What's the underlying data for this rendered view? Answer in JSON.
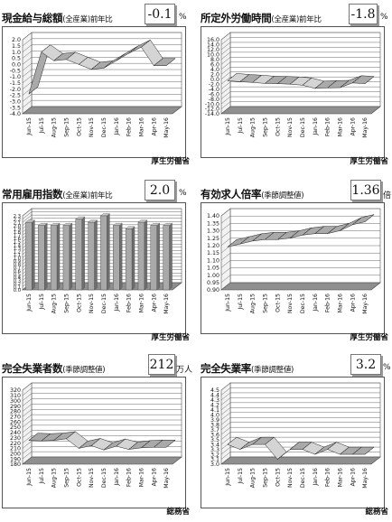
{
  "charts": [
    {
      "title": "現金給与総額",
      "subtitle": "(全産業)前年比",
      "value": "-0.1",
      "unit": "%",
      "source": "厚生労働省",
      "colors": {
        "fill": "#a9a9a9",
        "dark": "#222222"
      }
    },
    {
      "title": "所定外労働時間",
      "subtitle": "(全産業)前年比",
      "value": "-1.8",
      "unit": "%",
      "source": "厚生労働省",
      "colors": {
        "fill": "#a9a9a9",
        "dark": "#222222"
      }
    },
    {
      "title": "常用雇用指数",
      "subtitle": "(全産業)前年比",
      "value": "2.0",
      "unit": "%",
      "source": "厚生労働省",
      "colors": {
        "fill": "#a9a9a9",
        "dark": "#222222"
      }
    },
    {
      "title": "有効求人倍率",
      "subtitle": "(季節調整値)",
      "value": "1.36",
      "unit": "倍",
      "source": "厚生労働省",
      "colors": {
        "fill": "#a9a9a9",
        "dark": "#222222"
      }
    },
    {
      "title": "完全失業者数",
      "subtitle": "(季節調整値)",
      "value": "212",
      "unit": "万人",
      "source": "総務省",
      "colors": {
        "fill": "#a9a9a9",
        "dark": "#222222"
      }
    },
    {
      "title": "完全失業率",
      "subtitle": "(季節調整値)",
      "value": "3.2",
      "unit": "%",
      "source": "総務省",
      "colors": {
        "fill": "#a9a9a9",
        "dark": "#222222"
      }
    }
  ],
  "chart_data": [
    {
      "type": "line",
      "title": "現金給与総額",
      "categories": [
        "Jun-15",
        "Jul-15",
        "Aug-15",
        "Sep-15",
        "Oct-15",
        "Nov-15",
        "Dec-15",
        "Jan-16",
        "Feb-16",
        "Mar-16",
        "Apr-16",
        "May-16"
      ],
      "values": [
        -2.4,
        1.0,
        0.3,
        0.4,
        0.0,
        -0.4,
        -0.3,
        0.3,
        0.9,
        1.4,
        -0.1,
        -0.1
      ],
      "ylim": [
        -4.0,
        2.0
      ],
      "yticks": [
        "2.0",
        "1.5",
        "1.0",
        "0.5",
        "0.0",
        "-0.5",
        "-1.0",
        "-1.5",
        "-2.0",
        "-2.5",
        "-3.0",
        "-3.5",
        "-4.0"
      ],
      "grid": true
    },
    {
      "type": "line",
      "title": "所定外労働時間",
      "categories": [
        "Jun-15",
        "Jul-15",
        "Aug-15",
        "Sep-15",
        "Oct-15",
        "Nov-15",
        "Dec-15",
        "Jan-16",
        "Feb-16",
        "Mar-16",
        "Apr-16",
        "May-16"
      ],
      "values": [
        -0.6,
        -1.0,
        -1.3,
        -1.7,
        -1.8,
        -2.0,
        -2.4,
        -3.7,
        -3.5,
        -3.4,
        -1.5,
        -1.8
      ],
      "ylim": [
        -14.0,
        16.0
      ],
      "yticks": [
        "16.0",
        "14.0",
        "12.0",
        "10.0",
        "8.0",
        "6.0",
        "4.0",
        "2.0",
        "0.0",
        "-2.0",
        "-4.0",
        "-6.0",
        "-8.0",
        "-10.0",
        "-12.0",
        "-14.0"
      ],
      "grid": true
    },
    {
      "type": "bar",
      "title": "常用雇用指数",
      "categories": [
        "Jun-15",
        "Jul-15",
        "Aug-15",
        "Sep-15",
        "Oct-15",
        "Nov-15",
        "Dec-15",
        "Jan-16",
        "Feb-16",
        "Mar-16",
        "Apr-16",
        "May-16"
      ],
      "values": [
        2.1,
        2.0,
        2.0,
        2.0,
        2.2,
        2.1,
        2.3,
        2.0,
        1.9,
        2.1,
        2.0,
        2.0
      ],
      "ylim": [
        0.0,
        2.3
      ],
      "yticks": [
        "2.3",
        "2.2",
        "2.1",
        "2.0",
        "1.9",
        "1.8",
        "1.7",
        "1.6",
        "1.5",
        "1.4",
        "1.3",
        "1.2",
        "1.1",
        "1.0",
        "0.9",
        "0.8",
        "0.7",
        "0.6",
        "0.5",
        "0.4",
        "0.3",
        "0.2",
        "0.1",
        "0.0"
      ],
      "grid": true
    },
    {
      "type": "line",
      "title": "有効求人倍率",
      "categories": [
        "Jun-15",
        "Jul-15",
        "Aug-15",
        "Sep-15",
        "Oct-15",
        "Nov-15",
        "Dec-15",
        "Jan-16",
        "Feb-16",
        "Mar-16",
        "Apr-16",
        "May-16"
      ],
      "values": [
        1.19,
        1.21,
        1.23,
        1.24,
        1.24,
        1.25,
        1.27,
        1.28,
        1.28,
        1.3,
        1.34,
        1.36
      ],
      "ylim": [
        0.9,
        1.4
      ],
      "yticks": [
        "1.40",
        "1.35",
        "1.30",
        "1.25",
        "1.20",
        "1.15",
        "1.10",
        "1.05",
        "1.00",
        "0.95",
        "0.90"
      ],
      "grid": true
    },
    {
      "type": "line",
      "title": "完全失業者数",
      "categories": [
        "Jun-15",
        "Jul-15",
        "Aug-15",
        "Sep-15",
        "Oct-15",
        "Nov-15",
        "Dec-15",
        "Jan-16",
        "Feb-16",
        "Mar-16",
        "Apr-16",
        "May-16"
      ],
      "values": [
        225,
        224,
        225,
        228,
        210,
        215,
        207,
        214,
        208,
        211,
        212,
        212
      ],
      "ylim": [
        180,
        320
      ],
      "yticks": [
        "320",
        "310",
        "300",
        "290",
        "280",
        "270",
        "260",
        "250",
        "240",
        "230",
        "220",
        "210",
        "200",
        "190",
        "180"
      ],
      "grid": true
    },
    {
      "type": "line",
      "title": "完全失業率",
      "categories": [
        "Jun-15",
        "Jul-15",
        "Aug-15",
        "Sep-15",
        "Oct-15",
        "Nov-15",
        "Dec-15",
        "Jan-16",
        "Feb-16",
        "Mar-16",
        "Apr-16",
        "May-16"
      ],
      "values": [
        3.4,
        3.3,
        3.4,
        3.4,
        3.1,
        3.3,
        3.3,
        3.2,
        3.3,
        3.2,
        3.2,
        3.2
      ],
      "ylim": [
        3.0,
        4.5
      ],
      "yticks": [
        "4.5",
        "4.4",
        "4.3",
        "4.2",
        "4.1",
        "4.0",
        "3.9",
        "3.8",
        "3.7",
        "3.6",
        "3.5",
        "3.4",
        "3.3",
        "3.2",
        "3.1",
        "3.0"
      ],
      "grid": true
    }
  ]
}
